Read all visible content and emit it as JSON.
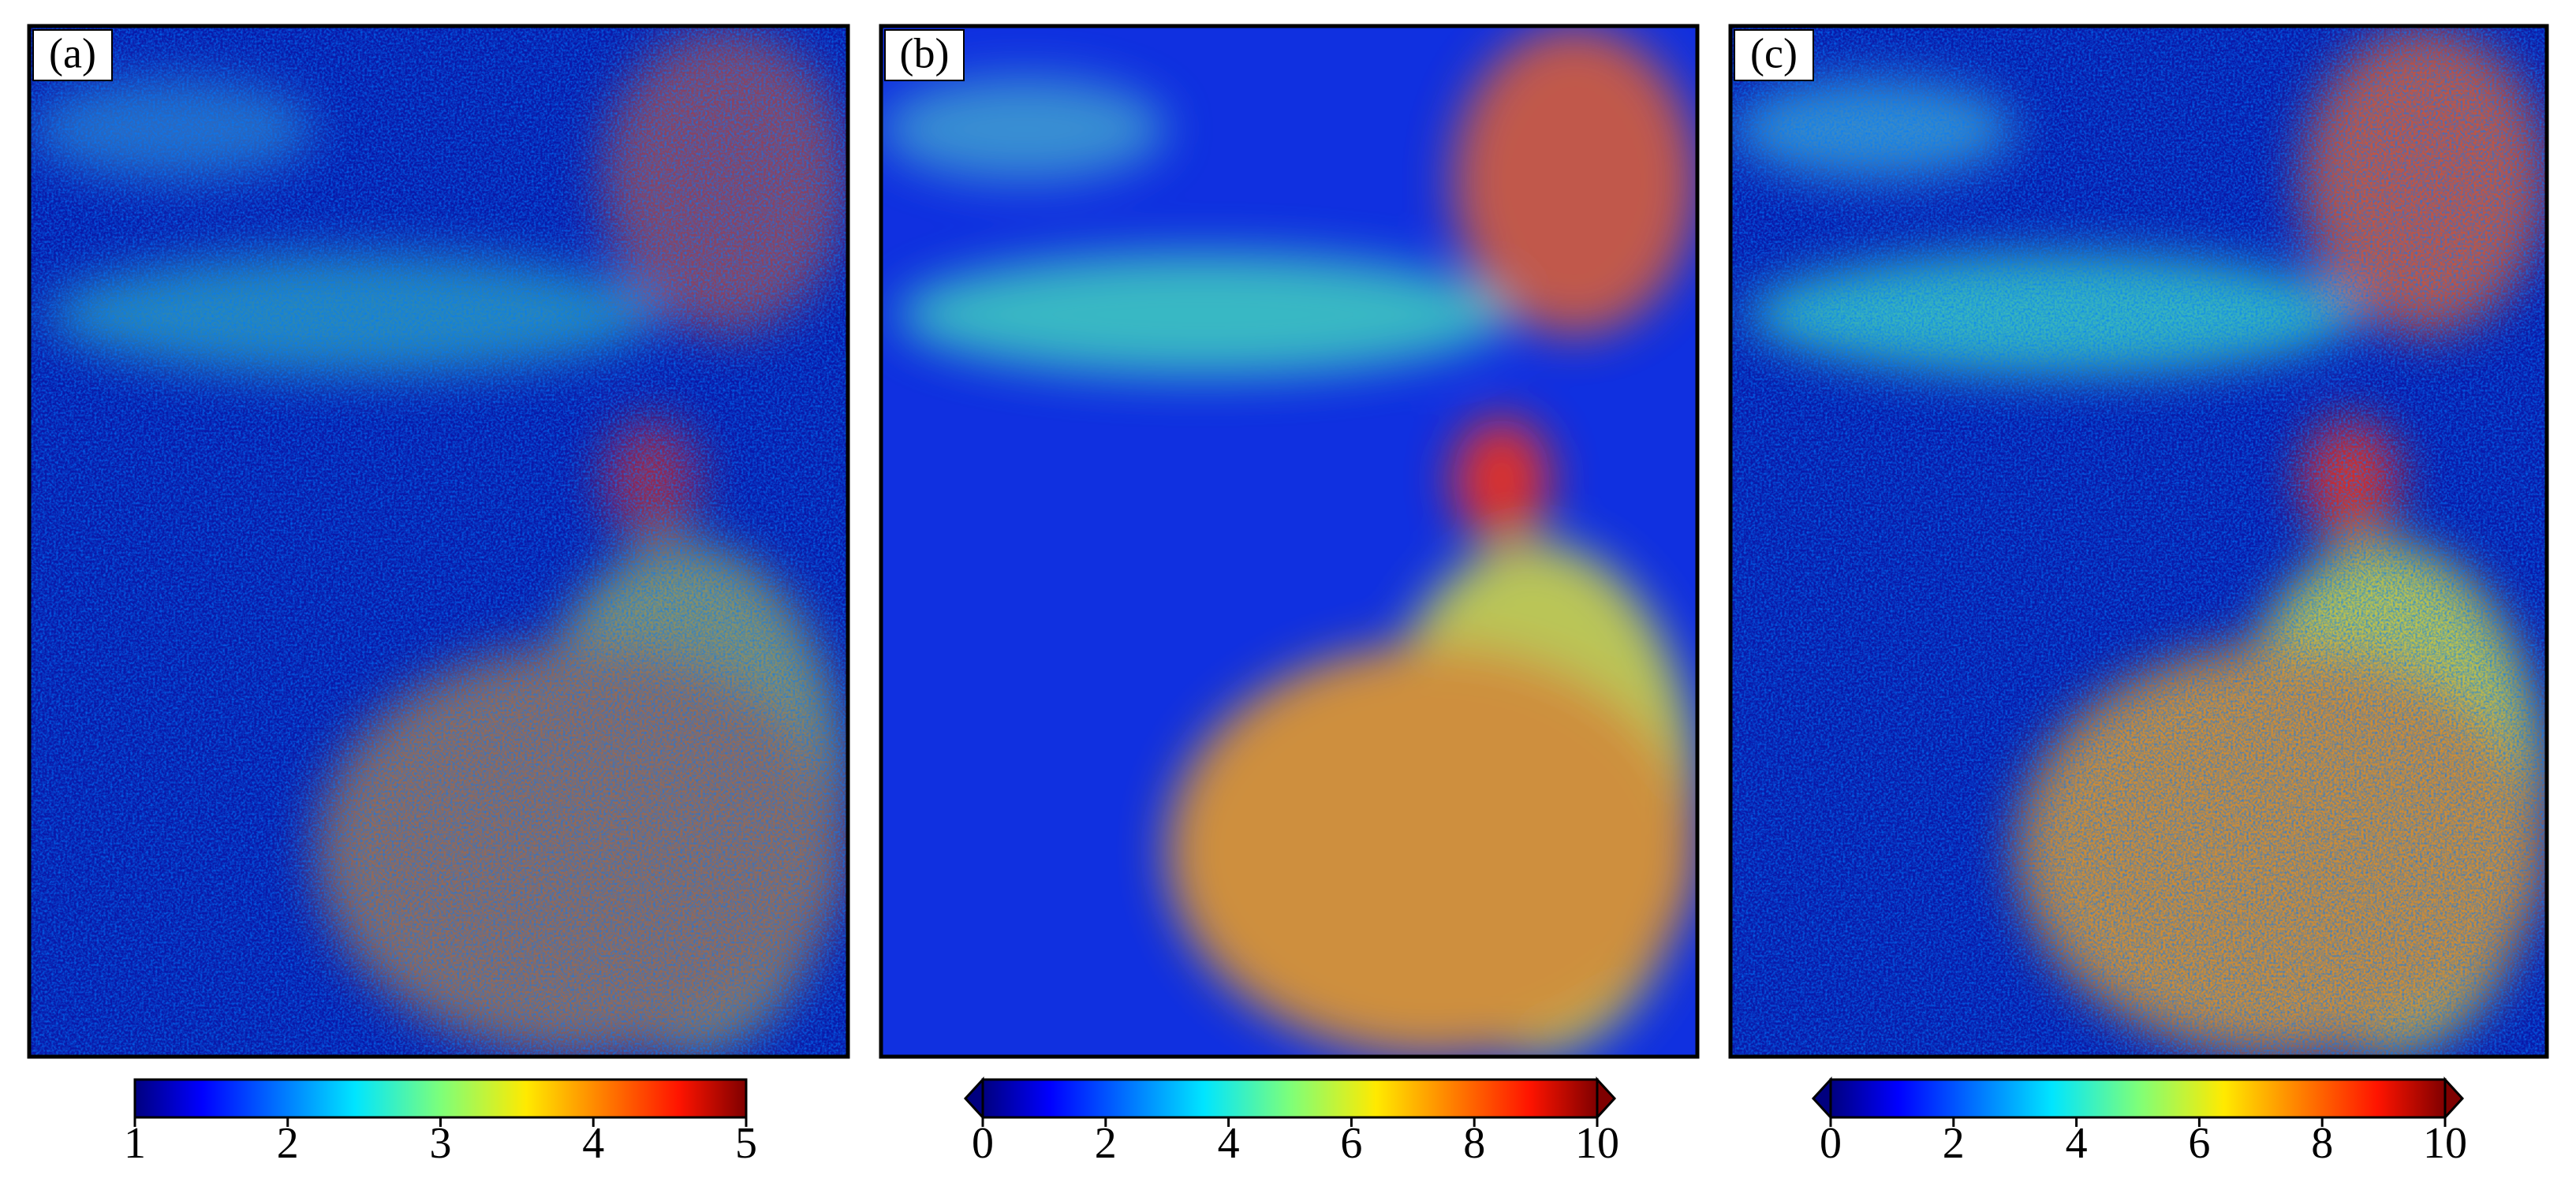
{
  "chart_data": [
    {
      "type": "heatmap",
      "title": "(a)",
      "colormap": "jet",
      "clim": [
        1,
        5
      ],
      "cticks": [
        1,
        2,
        3,
        4,
        5
      ],
      "extend": "neither"
    },
    {
      "type": "heatmap",
      "title": "(b)",
      "colormap": "jet",
      "clim": [
        0,
        10
      ],
      "cticks": [
        0,
        2,
        4,
        6,
        8,
        10
      ],
      "extend": "both"
    },
    {
      "type": "heatmap",
      "title": "(c)",
      "colormap": "jet",
      "clim": [
        0,
        10
      ],
      "cticks": [
        0,
        2,
        4,
        6,
        8,
        10
      ],
      "extend": "both"
    }
  ]
}
